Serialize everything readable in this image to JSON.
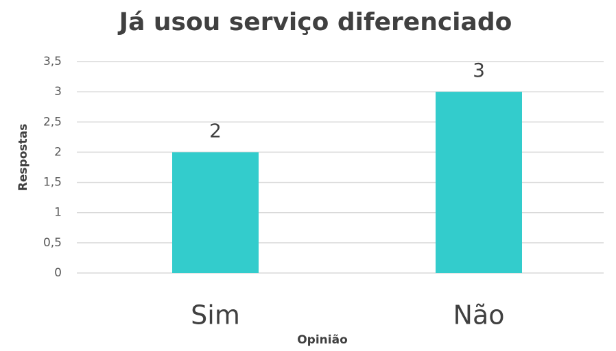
{
  "chart_data": {
    "type": "bar",
    "title": "Já usou serviço diferenciado",
    "x_label": "Opinião",
    "y_label": "Respostas",
    "categories": [
      "Sim",
      "Não"
    ],
    "values": [
      2,
      3
    ],
    "color": "#33cccc",
    "ylim": [
      0,
      3.5
    ],
    "yticks": [
      0,
      {
        "value": 0.5,
        "label": "0,5"
      },
      1,
      {
        "value": 1.5,
        "label": "1,5"
      },
      2,
      {
        "value": 2.5,
        "label": "2,5"
      },
      3,
      {
        "value": 3.5,
        "label": "3,5"
      }
    ],
    "grid": true
  }
}
